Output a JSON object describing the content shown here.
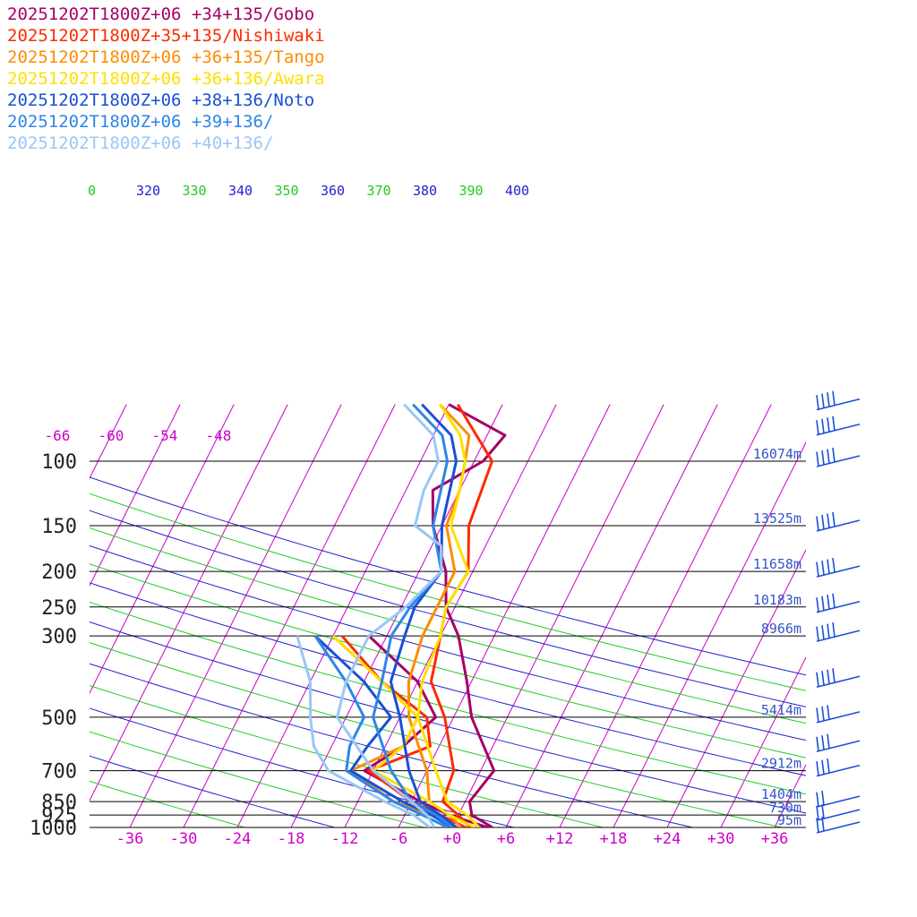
{
  "colors": {
    "temperature_lines": "#cc00cc",
    "potential_temperature_lines": "#2222cc",
    "equivalent_potential_temperature_lines": "#22cc22",
    "pressure_lines": "#000000",
    "height_labels": "#3355cc",
    "wind_barbs": "#1a4fd6"
  },
  "chart_data": {
    "type": "line",
    "subtype": "skew-T log-P sounding",
    "title": "",
    "xlabel": "",
    "ylabel": "",
    "y_scale": "log",
    "y_reversed": true,
    "ylim": [
      1000,
      70
    ],
    "xlim": [
      -40,
      40
    ],
    "grid": true,
    "legend_position": "top-left",
    "pressure_levels": [
      100,
      150,
      200,
      250,
      300,
      500,
      700,
      850,
      925,
      1000
    ],
    "pressure_tick_labels": [
      "100",
      "150",
      "200",
      "250",
      "300",
      "500",
      "700",
      "850",
      "925",
      "1000"
    ],
    "x_ticks": [
      -36,
      -30,
      -24,
      -18,
      -12,
      -6,
      0,
      6,
      12,
      18,
      24,
      30,
      36
    ],
    "x_tick_labels": [
      "-36",
      "-30",
      "-24",
      "-18",
      "-12",
      "-6",
      "+0",
      "+6",
      "+12",
      "+18",
      "+24",
      "+30",
      "+36"
    ],
    "upper_temperature_labels": [
      "-66",
      "-60",
      "-54",
      "-48"
    ],
    "isentrope_labels": [
      {
        "text": "0",
        "color": "#22cc22"
      },
      {
        "text": "320",
        "color": "#2222cc"
      },
      {
        "text": "330",
        "color": "#22cc22"
      },
      {
        "text": "340",
        "color": "#2222cc"
      },
      {
        "text": "350",
        "color": "#22cc22"
      },
      {
        "text": "360",
        "color": "#2222cc"
      },
      {
        "text": "370",
        "color": "#22cc22"
      },
      {
        "text": "380",
        "color": "#2222cc"
      },
      {
        "text": "390",
        "color": "#22cc22"
      },
      {
        "text": "400",
        "color": "#2222cc"
      }
    ],
    "height_labels": [
      {
        "pressure": 100,
        "text": "16074m"
      },
      {
        "pressure": 150,
        "text": "13525m"
      },
      {
        "pressure": 200,
        "text": "11658m"
      },
      {
        "pressure": 250,
        "text": "10183m"
      },
      {
        "pressure": 300,
        "text": "8966m"
      },
      {
        "pressure": 500,
        "text": "5414m"
      },
      {
        "pressure": 700,
        "text": "2912m"
      },
      {
        "pressure": 850,
        "text": "1404m"
      },
      {
        "pressure": 925,
        "text": "730m"
      },
      {
        "pressure": 1000,
        "text": "95m"
      }
    ],
    "wind_barbs_at_pressure": [
      70,
      82,
      100,
      150,
      200,
      250,
      300,
      400,
      500,
      600,
      700,
      850,
      925,
      1000
    ],
    "series": [
      {
        "name": "20251202T1800Z+06 +34+135/Gobo",
        "color": "#a50066",
        "temperature": [
          [
            1000,
            4.5
          ],
          [
            925,
            1.5
          ],
          [
            850,
            0.5
          ],
          [
            700,
            1.5
          ],
          [
            500,
            -4
          ],
          [
            400,
            -6.5
          ],
          [
            300,
            -10
          ],
          [
            250,
            -13
          ],
          [
            200,
            -15
          ],
          [
            150,
            -19
          ],
          [
            120,
            -21
          ],
          [
            100,
            -17
          ],
          [
            85,
            -16
          ],
          [
            70,
            -24
          ]
        ],
        "dewpoint": [
          [
            1000,
            4
          ],
          [
            925,
            -1
          ],
          [
            850,
            -5
          ],
          [
            700,
            -13
          ],
          [
            600,
            -10
          ],
          [
            500,
            -8
          ],
          [
            400,
            -12
          ],
          [
            300,
            -20
          ]
        ]
      },
      {
        "name": "20251202T1800Z+35+135/Nishiwaki",
        "color": "#ff2a00",
        "temperature": [
          [
            1000,
            2
          ],
          [
            925,
            0
          ],
          [
            850,
            -2.5
          ],
          [
            700,
            -3
          ],
          [
            500,
            -7
          ],
          [
            400,
            -10.5
          ],
          [
            300,
            -12
          ],
          [
            250,
            -13
          ],
          [
            200,
            -12.5
          ],
          [
            150,
            -15
          ],
          [
            100,
            -16
          ],
          [
            70,
            -23
          ]
        ],
        "dewpoint": [
          [
            1000,
            1.5
          ],
          [
            925,
            -2
          ],
          [
            850,
            -6
          ],
          [
            700,
            -12.5
          ],
          [
            600,
            -7
          ],
          [
            500,
            -9
          ],
          [
            400,
            -16
          ],
          [
            300,
            -23
          ]
        ]
      },
      {
        "name": "20251202T1800Z+06 +36+135/Tango",
        "color": "#ff8c00",
        "temperature": [
          [
            1000,
            1
          ],
          [
            925,
            -1
          ],
          [
            850,
            -4
          ],
          [
            700,
            -6
          ],
          [
            500,
            -11
          ],
          [
            400,
            -13
          ],
          [
            300,
            -14
          ],
          [
            250,
            -14
          ],
          [
            200,
            -14
          ],
          [
            150,
            -17.5
          ],
          [
            120,
            -18
          ],
          [
            100,
            -19
          ],
          [
            85,
            -20
          ],
          [
            70,
            -25
          ]
        ],
        "dewpoint": [
          [
            1000,
            0.5
          ],
          [
            925,
            -3
          ],
          [
            850,
            -8
          ],
          [
            700,
            -14.5
          ],
          [
            600,
            -10
          ],
          [
            500,
            -10
          ],
          [
            400,
            -16
          ],
          [
            300,
            -24
          ]
        ]
      },
      {
        "name": "20251202T1800Z+06 +36+136/Awara",
        "color": "#ffe000",
        "temperature": [
          [
            1000,
            3
          ],
          [
            925,
            1
          ],
          [
            850,
            -2
          ],
          [
            700,
            -5
          ],
          [
            500,
            -10
          ],
          [
            400,
            -11.5
          ],
          [
            300,
            -12
          ],
          [
            250,
            -13
          ],
          [
            200,
            -12.5
          ],
          [
            150,
            -17
          ],
          [
            120,
            -18
          ],
          [
            100,
            -19
          ],
          [
            85,
            -21
          ],
          [
            70,
            -25
          ]
        ],
        "dewpoint": [
          [
            1000,
            2.5
          ],
          [
            925,
            -1
          ],
          [
            850,
            -4
          ],
          [
            700,
            -12
          ],
          [
            600,
            -10
          ],
          [
            500,
            -10
          ],
          [
            400,
            -16
          ],
          [
            300,
            -24
          ]
        ]
      },
      {
        "name": "20251202T1800Z+06 +38+136/Noto",
        "color": "#1a4fd6",
        "temperature": [
          [
            1000,
            0.5
          ],
          [
            925,
            -2
          ],
          [
            850,
            -5
          ],
          [
            700,
            -8
          ],
          [
            500,
            -12
          ],
          [
            400,
            -15
          ],
          [
            300,
            -16
          ],
          [
            250,
            -16.5
          ],
          [
            200,
            -15.5
          ],
          [
            150,
            -18
          ],
          [
            100,
            -20
          ],
          [
            85,
            -22
          ],
          [
            70,
            -27
          ]
        ],
        "dewpoint": [
          [
            1000,
            0
          ],
          [
            925,
            -3
          ],
          [
            850,
            -7
          ],
          [
            700,
            -14.5
          ],
          [
            600,
            -14
          ],
          [
            500,
            -13
          ],
          [
            400,
            -18
          ],
          [
            300,
            -26
          ]
        ]
      },
      {
        "name": "20251202T1800Z+06 +39+136/",
        "color": "#2e86e8",
        "temperature": [
          [
            1000,
            0
          ],
          [
            925,
            -2.5
          ],
          [
            850,
            -6
          ],
          [
            700,
            -10
          ],
          [
            500,
            -15
          ],
          [
            400,
            -16
          ],
          [
            300,
            -17.5
          ],
          [
            250,
            -17
          ],
          [
            200,
            -15.5
          ],
          [
            150,
            -19
          ],
          [
            100,
            -21
          ],
          [
            85,
            -23
          ],
          [
            70,
            -28
          ]
        ],
        "dewpoint": [
          [
            1000,
            -0.5
          ],
          [
            925,
            -4
          ],
          [
            850,
            -8
          ],
          [
            700,
            -15
          ],
          [
            600,
            -16
          ],
          [
            500,
            -16
          ],
          [
            400,
            -20
          ],
          [
            300,
            -26
          ]
        ]
      },
      {
        "name": "20251202T1800Z+06 +40+136/",
        "color": "#99c7f5",
        "temperature": [
          [
            1000,
            -2
          ],
          [
            925,
            -3.5
          ],
          [
            850,
            -6
          ],
          [
            700,
            -12
          ],
          [
            500,
            -19
          ],
          [
            400,
            -20
          ],
          [
            300,
            -20
          ],
          [
            250,
            -17.5
          ],
          [
            200,
            -15.5
          ],
          [
            170,
            -17
          ],
          [
            150,
            -21
          ],
          [
            120,
            -22
          ],
          [
            100,
            -22
          ],
          [
            85,
            -24
          ],
          [
            70,
            -29
          ]
        ],
        "dewpoint": [
          [
            1000,
            -2.5
          ],
          [
            925,
            -5
          ],
          [
            850,
            -9
          ],
          [
            700,
            -17
          ],
          [
            600,
            -20
          ],
          [
            500,
            -22
          ],
          [
            400,
            -24
          ],
          [
            300,
            -28
          ]
        ]
      }
    ]
  }
}
